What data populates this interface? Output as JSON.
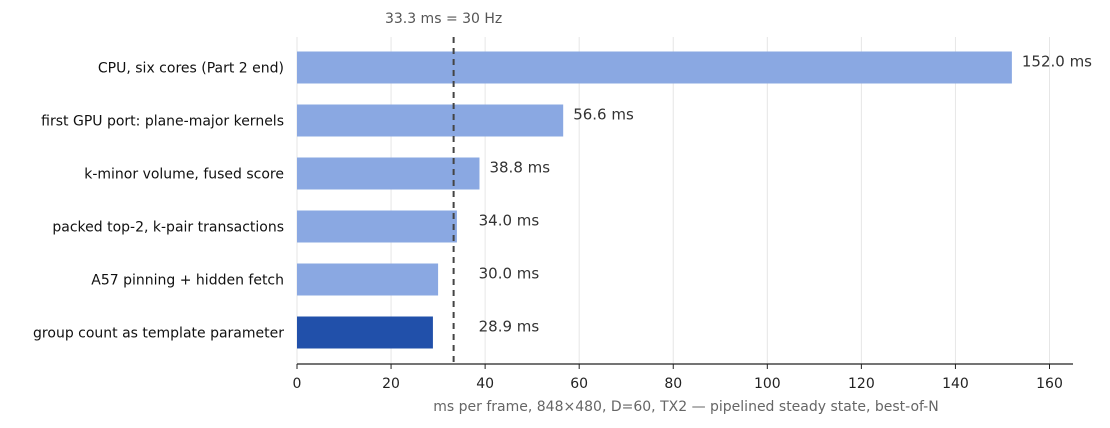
{
  "chart_data": {
    "type": "bar",
    "orientation": "horizontal",
    "categories": [
      "CPU, six cores (Part 2 end)",
      "first GPU port: plane-major kernels",
      "k-minor volume, fused score",
      "packed top-2, k-pair transactions",
      "A57 pinning + hidden fetch",
      "group count as template parameter"
    ],
    "values": [
      152.0,
      56.6,
      38.8,
      34.0,
      30.0,
      28.9
    ],
    "value_labels": [
      "152.0 ms",
      "56.6 ms",
      "38.8 ms",
      "34.0 ms",
      "30.0 ms",
      "28.9 ms"
    ],
    "highlight_index": 5,
    "colors": {
      "bar": "#8aa8e2",
      "highlight": "#2150aa",
      "grid": "#e6e6e6",
      "axis": "#222222",
      "reference": "#444444"
    },
    "xlabel": "ms per frame, 848×480, D=60, TX2 — pipelined steady state, best-of-N",
    "xlim": [
      0,
      165
    ],
    "xticks": [
      0,
      20,
      40,
      60,
      80,
      100,
      120,
      140,
      160
    ],
    "grid": "vertical",
    "reference_line": {
      "value": 33.3,
      "label": "33.3 ms = 30 Hz",
      "style": "dashed"
    }
  }
}
